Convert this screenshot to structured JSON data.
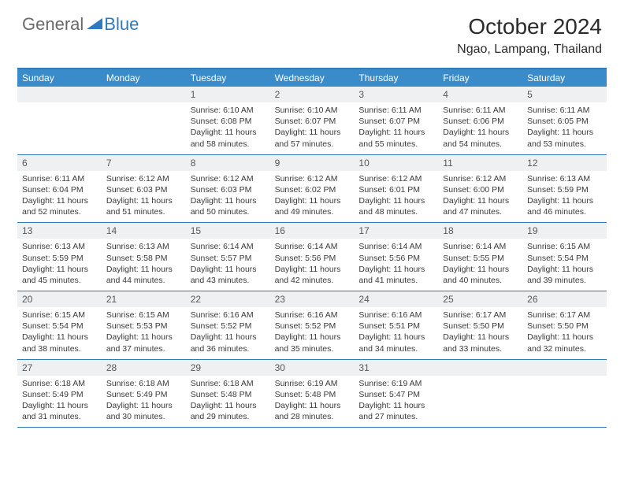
{
  "brand": {
    "part1": "General",
    "part2": "Blue"
  },
  "title": "October 2024",
  "location": "Ngao, Lampang, Thailand",
  "colors": {
    "header_bg": "#3a8bc9",
    "border": "#2f7abf",
    "daynum_bg": "#eef0f2",
    "text": "#2b2b2b",
    "logo_gray": "#6a6a6a",
    "logo_blue": "#2f7abf"
  },
  "daysOfWeek": [
    "Sunday",
    "Monday",
    "Tuesday",
    "Wednesday",
    "Thursday",
    "Friday",
    "Saturday"
  ],
  "weeks": [
    [
      {
        "n": "",
        "sr": "",
        "ss": "",
        "dl": ""
      },
      {
        "n": "",
        "sr": "",
        "ss": "",
        "dl": ""
      },
      {
        "n": "1",
        "sr": "Sunrise: 6:10 AM",
        "ss": "Sunset: 6:08 PM",
        "dl": "Daylight: 11 hours and 58 minutes."
      },
      {
        "n": "2",
        "sr": "Sunrise: 6:10 AM",
        "ss": "Sunset: 6:07 PM",
        "dl": "Daylight: 11 hours and 57 minutes."
      },
      {
        "n": "3",
        "sr": "Sunrise: 6:11 AM",
        "ss": "Sunset: 6:07 PM",
        "dl": "Daylight: 11 hours and 55 minutes."
      },
      {
        "n": "4",
        "sr": "Sunrise: 6:11 AM",
        "ss": "Sunset: 6:06 PM",
        "dl": "Daylight: 11 hours and 54 minutes."
      },
      {
        "n": "5",
        "sr": "Sunrise: 6:11 AM",
        "ss": "Sunset: 6:05 PM",
        "dl": "Daylight: 11 hours and 53 minutes."
      }
    ],
    [
      {
        "n": "6",
        "sr": "Sunrise: 6:11 AM",
        "ss": "Sunset: 6:04 PM",
        "dl": "Daylight: 11 hours and 52 minutes."
      },
      {
        "n": "7",
        "sr": "Sunrise: 6:12 AM",
        "ss": "Sunset: 6:03 PM",
        "dl": "Daylight: 11 hours and 51 minutes."
      },
      {
        "n": "8",
        "sr": "Sunrise: 6:12 AM",
        "ss": "Sunset: 6:03 PM",
        "dl": "Daylight: 11 hours and 50 minutes."
      },
      {
        "n": "9",
        "sr": "Sunrise: 6:12 AM",
        "ss": "Sunset: 6:02 PM",
        "dl": "Daylight: 11 hours and 49 minutes."
      },
      {
        "n": "10",
        "sr": "Sunrise: 6:12 AM",
        "ss": "Sunset: 6:01 PM",
        "dl": "Daylight: 11 hours and 48 minutes."
      },
      {
        "n": "11",
        "sr": "Sunrise: 6:12 AM",
        "ss": "Sunset: 6:00 PM",
        "dl": "Daylight: 11 hours and 47 minutes."
      },
      {
        "n": "12",
        "sr": "Sunrise: 6:13 AM",
        "ss": "Sunset: 5:59 PM",
        "dl": "Daylight: 11 hours and 46 minutes."
      }
    ],
    [
      {
        "n": "13",
        "sr": "Sunrise: 6:13 AM",
        "ss": "Sunset: 5:59 PM",
        "dl": "Daylight: 11 hours and 45 minutes."
      },
      {
        "n": "14",
        "sr": "Sunrise: 6:13 AM",
        "ss": "Sunset: 5:58 PM",
        "dl": "Daylight: 11 hours and 44 minutes."
      },
      {
        "n": "15",
        "sr": "Sunrise: 6:14 AM",
        "ss": "Sunset: 5:57 PM",
        "dl": "Daylight: 11 hours and 43 minutes."
      },
      {
        "n": "16",
        "sr": "Sunrise: 6:14 AM",
        "ss": "Sunset: 5:56 PM",
        "dl": "Daylight: 11 hours and 42 minutes."
      },
      {
        "n": "17",
        "sr": "Sunrise: 6:14 AM",
        "ss": "Sunset: 5:56 PM",
        "dl": "Daylight: 11 hours and 41 minutes."
      },
      {
        "n": "18",
        "sr": "Sunrise: 6:14 AM",
        "ss": "Sunset: 5:55 PM",
        "dl": "Daylight: 11 hours and 40 minutes."
      },
      {
        "n": "19",
        "sr": "Sunrise: 6:15 AM",
        "ss": "Sunset: 5:54 PM",
        "dl": "Daylight: 11 hours and 39 minutes."
      }
    ],
    [
      {
        "n": "20",
        "sr": "Sunrise: 6:15 AM",
        "ss": "Sunset: 5:54 PM",
        "dl": "Daylight: 11 hours and 38 minutes."
      },
      {
        "n": "21",
        "sr": "Sunrise: 6:15 AM",
        "ss": "Sunset: 5:53 PM",
        "dl": "Daylight: 11 hours and 37 minutes."
      },
      {
        "n": "22",
        "sr": "Sunrise: 6:16 AM",
        "ss": "Sunset: 5:52 PM",
        "dl": "Daylight: 11 hours and 36 minutes."
      },
      {
        "n": "23",
        "sr": "Sunrise: 6:16 AM",
        "ss": "Sunset: 5:52 PM",
        "dl": "Daylight: 11 hours and 35 minutes."
      },
      {
        "n": "24",
        "sr": "Sunrise: 6:16 AM",
        "ss": "Sunset: 5:51 PM",
        "dl": "Daylight: 11 hours and 34 minutes."
      },
      {
        "n": "25",
        "sr": "Sunrise: 6:17 AM",
        "ss": "Sunset: 5:50 PM",
        "dl": "Daylight: 11 hours and 33 minutes."
      },
      {
        "n": "26",
        "sr": "Sunrise: 6:17 AM",
        "ss": "Sunset: 5:50 PM",
        "dl": "Daylight: 11 hours and 32 minutes."
      }
    ],
    [
      {
        "n": "27",
        "sr": "Sunrise: 6:18 AM",
        "ss": "Sunset: 5:49 PM",
        "dl": "Daylight: 11 hours and 31 minutes."
      },
      {
        "n": "28",
        "sr": "Sunrise: 6:18 AM",
        "ss": "Sunset: 5:49 PM",
        "dl": "Daylight: 11 hours and 30 minutes."
      },
      {
        "n": "29",
        "sr": "Sunrise: 6:18 AM",
        "ss": "Sunset: 5:48 PM",
        "dl": "Daylight: 11 hours and 29 minutes."
      },
      {
        "n": "30",
        "sr": "Sunrise: 6:19 AM",
        "ss": "Sunset: 5:48 PM",
        "dl": "Daylight: 11 hours and 28 minutes."
      },
      {
        "n": "31",
        "sr": "Sunrise: 6:19 AM",
        "ss": "Sunset: 5:47 PM",
        "dl": "Daylight: 11 hours and 27 minutes."
      },
      {
        "n": "",
        "sr": "",
        "ss": "",
        "dl": ""
      },
      {
        "n": "",
        "sr": "",
        "ss": "",
        "dl": ""
      }
    ]
  ]
}
